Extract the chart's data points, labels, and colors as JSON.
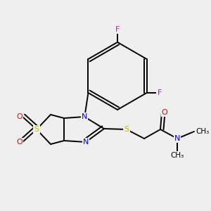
{
  "bg": "#efefef",
  "col": {
    "C": "#000000",
    "N": "#0000ee",
    "O": "#ee0000",
    "S": "#bbbb00",
    "F": "#dd00dd",
    "bond": "#000000"
  },
  "fs": 8.0,
  "lw": 1.4,
  "dbo": 0.013,
  "figsize": [
    3.0,
    3.0
  ],
  "dpi": 100
}
